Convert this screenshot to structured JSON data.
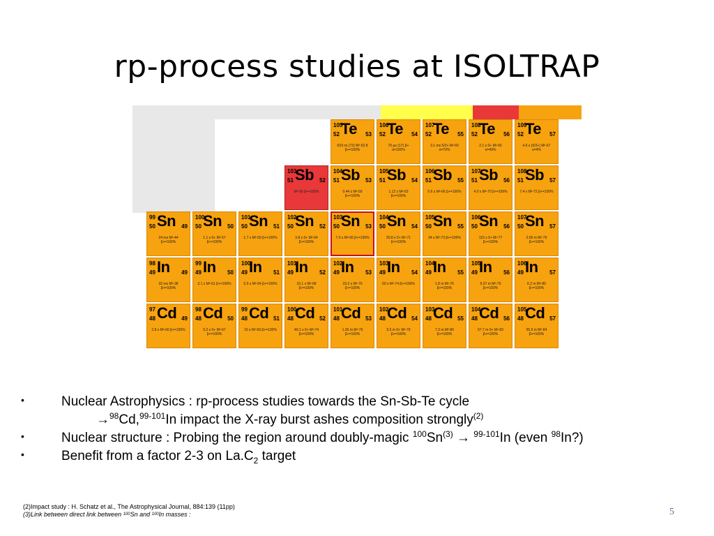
{
  "slide": {
    "title": "rp-process studies at ISOLTRAP",
    "page_number": "5"
  },
  "chart": {
    "cells": [
      {
        "a": "105",
        "z": "52",
        "sym": "Te",
        "n": "53",
        "color": "orange",
        "info": "633 ns (72) M²-52.8 β+=100%"
      },
      {
        "a": "106",
        "z": "52",
        "sym": "Te",
        "n": "54",
        "color": "orange",
        "info": "70 µs (17) β+ α=100%"
      },
      {
        "a": "107",
        "z": "52",
        "sym": "Te",
        "n": "55",
        "color": "orange",
        "info": "3.1 ms 5/2+ M²-60 α=70%"
      },
      {
        "a": "108",
        "z": "52",
        "sym": "Te",
        "n": "56",
        "color": "orange",
        "info": "2.1 s 0+ M²-65 α=49%"
      },
      {
        "a": "109",
        "z": "52",
        "sym": "Te",
        "n": "57",
        "color": "orange",
        "info": "4.6 s (5/2+) M²-67 α=4%"
      },
      {
        "a": "103",
        "z": "51",
        "sym": "Sb",
        "n": "52",
        "color": "red",
        "info": "M²-56 β+=100%"
      },
      {
        "a": "104",
        "z": "51",
        "sym": "Sb",
        "n": "53",
        "color": "orange",
        "info": "0.44 s M²-59 β+=100%"
      },
      {
        "a": "105",
        "z": "51",
        "sym": "Sb",
        "n": "54",
        "color": "orange",
        "info": "1.12 s M²-63 β+=100%"
      },
      {
        "a": "106",
        "z": "51",
        "sym": "Sb",
        "n": "55",
        "color": "orange",
        "info": "0.6 s M²-66 β+=100%"
      },
      {
        "a": "107",
        "z": "51",
        "sym": "Sb",
        "n": "56",
        "color": "orange",
        "info": "4.0 s M²-70 β+=100%"
      },
      {
        "a": "108",
        "z": "51",
        "sym": "Sb",
        "n": "57",
        "color": "orange",
        "info": "7.4 s M²-72 β+=100%"
      },
      {
        "a": "99",
        "z": "50",
        "sym": "Sn",
        "n": "49",
        "color": "orange",
        "info": "24 ms M²-44 β+=100%"
      },
      {
        "a": "100",
        "z": "50",
        "sym": "Sn",
        "n": "50",
        "color": "orange",
        "info": "1.1 s 0+ M²-57 β+=100%"
      },
      {
        "a": "101",
        "z": "50",
        "sym": "Sn",
        "n": "51",
        "color": "orange",
        "info": "1.7 s M²-59 β+=100%"
      },
      {
        "a": "102",
        "z": "50",
        "sym": "Sn",
        "n": "52",
        "color": "orange",
        "info": "3.8 s 0+ M²-64 β+=100%"
      },
      {
        "a": "103",
        "z": "50",
        "sym": "Sn",
        "n": "53",
        "color": "orange",
        "info": "7.0 s M²-66 β+=100%"
      },
      {
        "a": "104",
        "z": "50",
        "sym": "Sn",
        "n": "54",
        "color": "orange",
        "info": "20.8 s 0+ M²-71 β+=100%"
      },
      {
        "a": "105",
        "z": "50",
        "sym": "Sn",
        "n": "55",
        "color": "orange",
        "info": "34 s M²-73 β+=100%"
      },
      {
        "a": "106",
        "z": "50",
        "sym": "Sn",
        "n": "56",
        "color": "orange",
        "info": "115 s 0+ M²-77 β+=100%"
      },
      {
        "a": "107",
        "z": "50",
        "sym": "Sn",
        "n": "57",
        "color": "orange",
        "info": "2.90 m M²-79 β+=100%"
      },
      {
        "a": "98",
        "z": "49",
        "sym": "In",
        "n": "49",
        "color": "orange",
        "info": "32 ms M²-38 β+=100%"
      },
      {
        "a": "99",
        "z": "49",
        "sym": "In",
        "n": "50",
        "color": "orange",
        "info": "3.1 s M²-61 β+=100%"
      },
      {
        "a": "100",
        "z": "49",
        "sym": "In",
        "n": "51",
        "color": "orange",
        "info": "5.9 s M²-64 β+=100%"
      },
      {
        "a": "101",
        "z": "49",
        "sym": "In",
        "n": "52",
        "color": "orange",
        "info": "15.1 s M²-68 β+=100%"
      },
      {
        "a": "102",
        "z": "49",
        "sym": "In",
        "n": "53",
        "color": "orange",
        "info": "23.3 s M²-70 β+=100%"
      },
      {
        "a": "103",
        "z": "49",
        "sym": "In",
        "n": "54",
        "color": "orange",
        "info": "60 s M²-74 β+=100%"
      },
      {
        "a": "104",
        "z": "49",
        "sym": "In",
        "n": "55",
        "color": "orange",
        "info": "1.8 m M²-76 β+=100%"
      },
      {
        "a": "105",
        "z": "49",
        "sym": "In",
        "n": "56",
        "color": "orange",
        "info": "5.07 m M²-79 β+=100%"
      },
      {
        "a": "106",
        "z": "49",
        "sym": "In",
        "n": "57",
        "color": "orange",
        "info": "6.2 m M²-80 β+=100%"
      },
      {
        "a": "97",
        "z": "48",
        "sym": "Cd",
        "n": "49",
        "color": "orange",
        "info": "2.8 s M²-60 β+=100%"
      },
      {
        "a": "98",
        "z": "48",
        "sym": "Cd",
        "n": "50",
        "color": "orange",
        "info": "9.2 s 0+ M²-67 β+=100%"
      },
      {
        "a": "99",
        "z": "48",
        "sym": "Cd",
        "n": "51",
        "color": "orange",
        "info": "16 s M²-69 β+=100%"
      },
      {
        "a": "100",
        "z": "48",
        "sym": "Cd",
        "n": "52",
        "color": "orange",
        "info": "49.1 s 0+ M²-74 β+=100%"
      },
      {
        "a": "101",
        "z": "48",
        "sym": "Cd",
        "n": "53",
        "color": "orange",
        "info": "1.36 m M²-75 β+=100%"
      },
      {
        "a": "102",
        "z": "48",
        "sym": "Cd",
        "n": "54",
        "color": "orange",
        "info": "5.5 m 0+ M²-79 β+=100%"
      },
      {
        "a": "103",
        "z": "48",
        "sym": "Cd",
        "n": "55",
        "color": "orange",
        "info": "7.3 m M²-80 β+=100%"
      },
      {
        "a": "104",
        "z": "48",
        "sym": "Cd",
        "n": "56",
        "color": "orange",
        "info": "57.7 m 0+ M²-83 β+=100%"
      },
      {
        "a": "105",
        "z": "48",
        "sym": "Cd",
        "n": "57",
        "color": "orange",
        "info": "55.5 m M²-84 β+=100%"
      }
    ]
  },
  "bullets": [
    {
      "label": "•",
      "parts": [
        "Nuclear Astrophysics : rp-process studies towards the Sn-Sb-Te cycle"
      ]
    },
    {
      "label": "",
      "parts": [
        "→",
        "98",
        "Cd,",
        "99-101",
        "In impact the X-ray burst ashes composition strongly",
        "(2)"
      ]
    },
    {
      "label": "•",
      "parts": [
        "Nuclear structure : Probing the region around doubly-magic ",
        "100",
        "Sn",
        "(3)",
        " → ",
        "99-101",
        "In (even ",
        "98",
        "In?)"
      ]
    },
    {
      "label": "•",
      "parts": [
        "Benefit from a factor 2-3 on La.C",
        "2",
        " target"
      ]
    }
  ],
  "footnotes": {
    "fn1": "(2)Impact study : H. Schatz et al., The Astrophysical Journal, 884:139 (11pp)",
    "fn2_a": "(3)Link between direct link between ",
    "fn2_b": "100",
    "fn2_c": "Sn and ",
    "fn2_d": "100",
    "fn2_e": "In masses :"
  }
}
